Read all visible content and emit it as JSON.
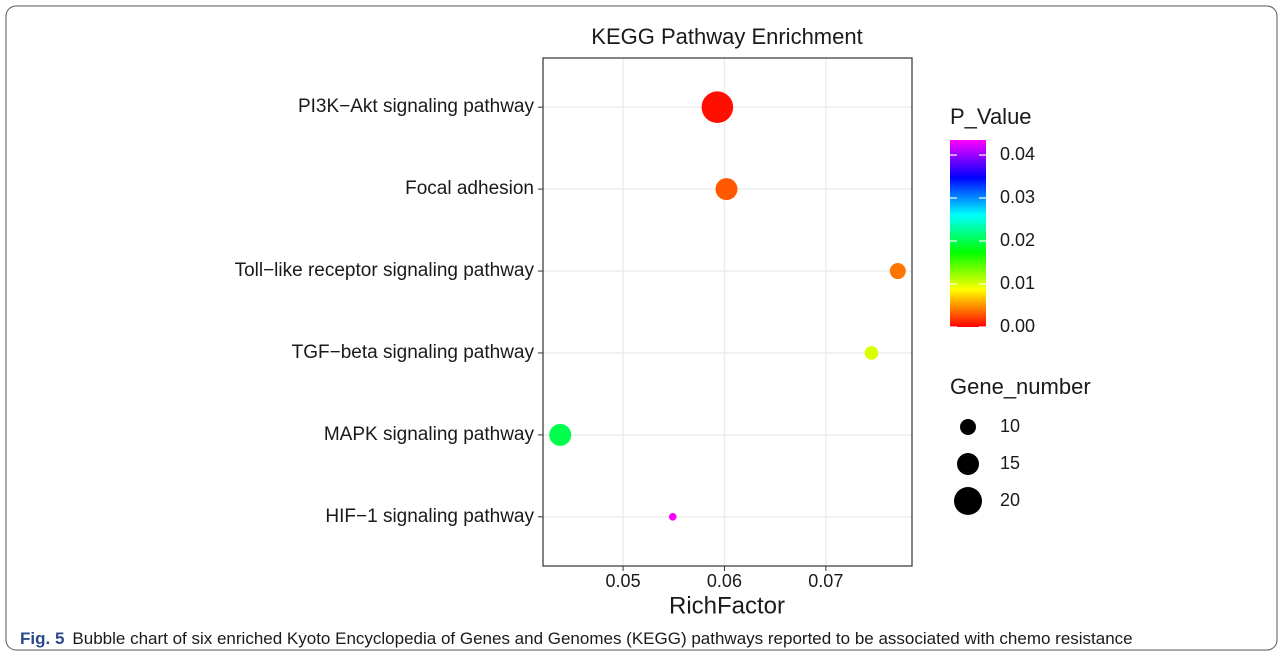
{
  "chart_data": {
    "type": "bubble",
    "title": "KEGG Pathway Enrichment",
    "x_label": "RichFactor",
    "categories": [
      "PI3K−Akt signaling pathway",
      "Focal adhesion",
      "Toll−like receptor signaling pathway",
      "TGF−beta signaling pathway",
      "MAPK signaling pathway",
      "HIF−1 signaling pathway"
    ],
    "values": [
      0.0593,
      0.0602,
      0.0771,
      0.0745,
      0.0438,
      0.0549
    ],
    "sizes": [
      23,
      15,
      10,
      8,
      15,
      3
    ],
    "p_values": [
      0.0005,
      0.003,
      0.004,
      0.01,
      0.02,
      0.0435
    ],
    "xlim": [
      0.0421,
      0.0785
    ],
    "xticks": [
      0.05,
      0.06,
      0.07
    ],
    "grid": true,
    "color_title": "P_Value",
    "clim": [
      0,
      0.0435
    ],
    "cticks": [
      {
        "value": 0,
        "label": "0.00"
      },
      0.01,
      0.02,
      0.03,
      0.04
    ],
    "colormap": [
      "#ff0000",
      "#ffff00",
      "#00ff00",
      "#00ffff",
      "#0000ff",
      "#ff00ff"
    ],
    "size_title": "Gene_number",
    "size_legend": [
      10,
      15,
      20
    ],
    "size_color": "#000000"
  },
  "caption": {
    "label": "Fig. 5",
    "text": "Bubble chart of six enriched Kyoto Encyclopedia of Genes and Genomes (KEGG) pathways reported to be associated with chemo resistance"
  }
}
